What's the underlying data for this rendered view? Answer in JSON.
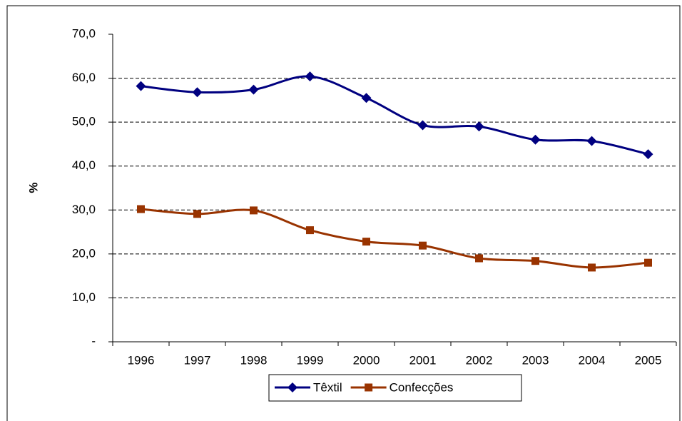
{
  "chart_data": {
    "type": "line",
    "y_label": "%",
    "categories": [
      "1996",
      "1997",
      "1998",
      "1999",
      "2000",
      "2001",
      "2002",
      "2003",
      "2004",
      "2005"
    ],
    "series": [
      {
        "name": "Têxtil",
        "color": "#000080",
        "marker": "diamond",
        "values": [
          58.2,
          56.8,
          57.4,
          60.4,
          55.5,
          49.3,
          49.0,
          46.0,
          45.7,
          42.7
        ]
      },
      {
        "name": "Confecções",
        "color": "#993300",
        "marker": "square",
        "values": [
          30.2,
          29.1,
          29.9,
          25.4,
          22.8,
          21.9,
          19.0,
          18.4,
          16.9,
          18.0
        ]
      }
    ],
    "ylim": [
      0,
      70
    ],
    "yticks": [
      {
        "value": 0,
        "label": "-"
      },
      {
        "value": 10,
        "label": "10,0"
      },
      {
        "value": 20,
        "label": "20,0"
      },
      {
        "value": 30,
        "label": "30,0"
      },
      {
        "value": 40,
        "label": "40,0"
      },
      {
        "value": 50,
        "label": "50,0"
      },
      {
        "value": 60,
        "label": "60,0"
      },
      {
        "value": 70,
        "label": "70,0"
      }
    ],
    "grid": true,
    "smooth": true,
    "legend": "bottom"
  }
}
